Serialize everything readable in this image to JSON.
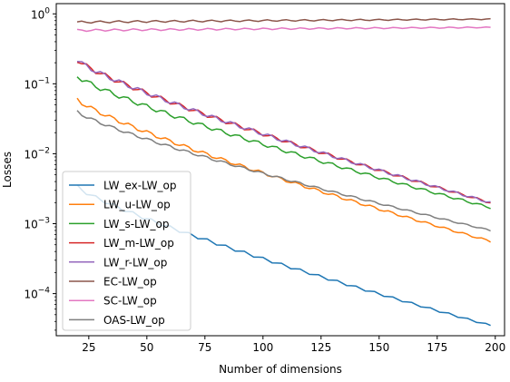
{
  "chart_data": {
    "type": "line",
    "title": "",
    "xlabel": "Number of dimensions",
    "ylabel": "Losses",
    "xlim": [
      11,
      204
    ],
    "ylim": [
      2.5e-05,
      1.4
    ],
    "yscale": "log",
    "grid": false,
    "legend_position": "lower-left",
    "x_ticks": [
      25,
      50,
      75,
      100,
      125,
      150,
      175,
      200
    ],
    "x_tick_labels": [
      "25",
      "50",
      "75",
      "100",
      "125",
      "150",
      "175",
      "200"
    ],
    "y_ticks": [
      0.0001,
      0.001,
      0.01,
      0.1,
      1
    ],
    "y_tick_labels": [
      {
        "base": "10",
        "exp": "−4"
      },
      {
        "base": "10",
        "exp": "−3"
      },
      {
        "base": "10",
        "exp": "−2"
      },
      {
        "base": "10",
        "exp": "−1"
      },
      {
        "base": "10",
        "exp": "0"
      }
    ],
    "x": [
      20,
      22,
      24,
      26,
      28,
      30,
      32,
      34,
      36,
      38,
      40,
      42,
      44,
      46,
      48,
      50,
      52,
      54,
      56,
      58,
      60,
      62,
      64,
      66,
      68,
      70,
      72,
      74,
      76,
      78,
      80,
      82,
      84,
      86,
      88,
      90,
      92,
      94,
      96,
      98,
      100,
      102,
      104,
      106,
      108,
      110,
      112,
      114,
      116,
      118,
      120,
      122,
      124,
      126,
      128,
      130,
      132,
      134,
      136,
      138,
      140,
      142,
      144,
      146,
      148,
      150,
      152,
      154,
      156,
      158,
      160,
      162,
      164,
      166,
      168,
      170,
      172,
      174,
      176,
      178,
      180,
      182,
      184,
      186,
      188,
      190,
      192,
      194,
      196,
      198
    ],
    "series": [
      {
        "name": "LW_ex-LW_op",
        "color": "#1f77b4",
        "start": 0.0034,
        "end": 3.5e-05,
        "wiggle": 0.06
      },
      {
        "name": "LW_u-LW_op",
        "color": "#ff7f0e",
        "start": 0.06,
        "end": 0.00056,
        "wiggle": 0.07
      },
      {
        "name": "LW_s-LW_op",
        "color": "#2ca02c",
        "start": 0.13,
        "end": 0.0017,
        "wiggle": 0.08
      },
      {
        "name": "LW_m-LW_op",
        "color": "#d62728",
        "start": 0.22,
        "end": 0.002,
        "wiggle": 0.08
      },
      {
        "name": "LW_r-LW_op",
        "color": "#9467bd",
        "start": 0.22,
        "end": 0.002,
        "wiggle": 0.08
      },
      {
        "name": "EC-LW_op",
        "color": "#8c564b",
        "start": 0.76,
        "end": 0.84,
        "wiggle": 0.035
      },
      {
        "name": "SC-LW_op",
        "color": "#e377c2",
        "start": 0.58,
        "end": 0.64,
        "wiggle": 0.035
      },
      {
        "name": "OAS-LW_op",
        "color": "#7f7f7f",
        "start": 0.04,
        "end": 0.0008,
        "wiggle": 0.05
      }
    ]
  }
}
